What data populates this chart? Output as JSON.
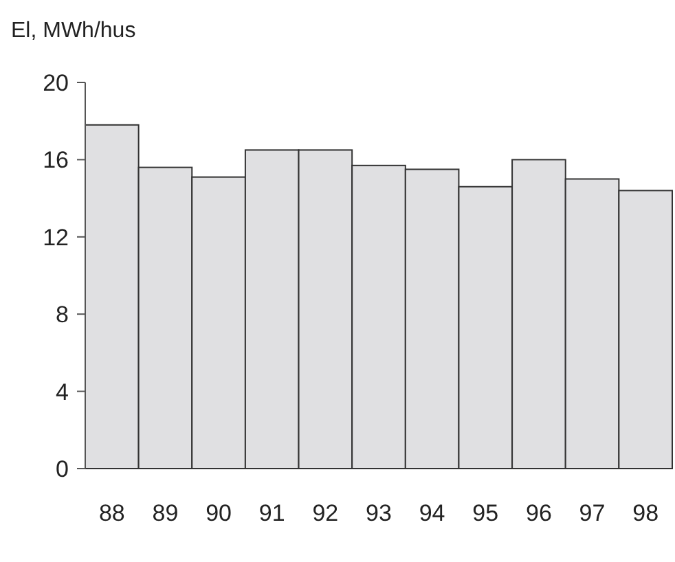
{
  "chart_data": {
    "type": "bar",
    "ylabel": "El, MWh/hus",
    "categories": [
      "88",
      "89",
      "90",
      "91",
      "92",
      "93",
      "94",
      "95",
      "96",
      "97",
      "98"
    ],
    "values": [
      17.8,
      15.6,
      15.1,
      16.5,
      16.5,
      15.7,
      15.5,
      14.6,
      16.0,
      15.0,
      14.4
    ],
    "color": "#e0e0e2",
    "ylim": [
      0,
      20
    ],
    "yticks": [
      0,
      4,
      8,
      12,
      16,
      20
    ],
    "grid": false
  }
}
